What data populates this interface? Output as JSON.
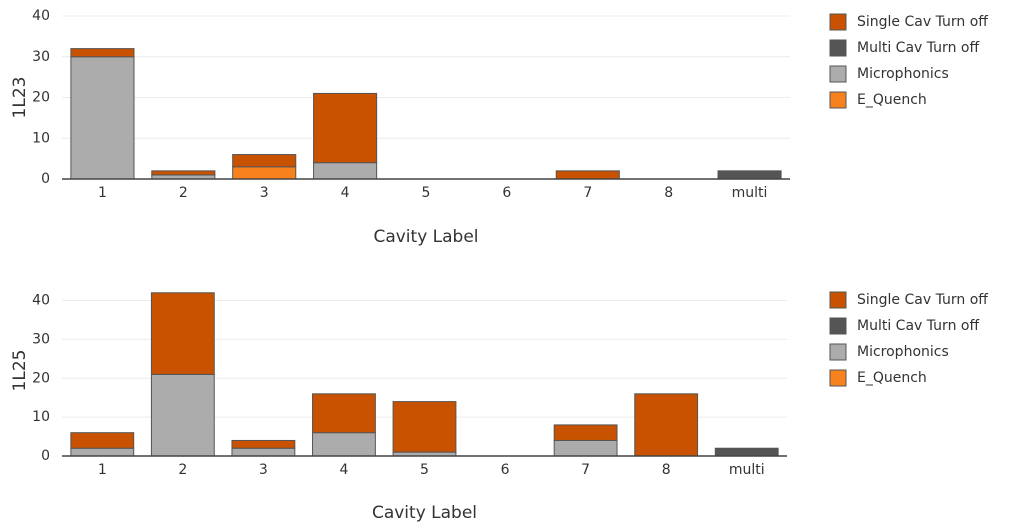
{
  "chart_data": [
    {
      "type": "bar",
      "stacked": true,
      "ylabel": "1L23",
      "xlabel": "Cavity Label",
      "categories": [
        "1",
        "2",
        "3",
        "4",
        "5",
        "6",
        "7",
        "8",
        "multi"
      ],
      "series": [
        {
          "name": "Single Cav Turn off",
          "color": "#c85200",
          "values": [
            2,
            1,
            3,
            17,
            0,
            0,
            2,
            0,
            0
          ]
        },
        {
          "name": "Multi Cav Turn off",
          "color": "#555555",
          "values": [
            0,
            0,
            0,
            0,
            0,
            0,
            0,
            0,
            2
          ]
        },
        {
          "name": "Microphonics",
          "color": "#acacac",
          "values": [
            30,
            1,
            0,
            4,
            0,
            0,
            0,
            0,
            0
          ]
        },
        {
          "name": "E_Quench",
          "color": "#f7811c",
          "values": [
            0,
            0,
            3,
            0,
            0,
            0,
            0,
            0,
            0
          ]
        }
      ],
      "ylim": [
        0,
        40
      ],
      "yticks": [
        0,
        10,
        20,
        30,
        40
      ],
      "grid": true,
      "legend": "right"
    },
    {
      "type": "bar",
      "stacked": true,
      "ylabel": "1L25",
      "xlabel": "Cavity Label",
      "categories": [
        "1",
        "2",
        "3",
        "4",
        "5",
        "6",
        "7",
        "8",
        "multi"
      ],
      "series": [
        {
          "name": "Single Cav Turn off",
          "color": "#c85200",
          "values": [
            4,
            21,
            2,
            10,
            13,
            0,
            4,
            16,
            0
          ]
        },
        {
          "name": "Multi Cav Turn off",
          "color": "#555555",
          "values": [
            0,
            0,
            0,
            0,
            0,
            0,
            0,
            0,
            2
          ]
        },
        {
          "name": "Microphonics",
          "color": "#acacac",
          "values": [
            2,
            21,
            2,
            6,
            1,
            0,
            4,
            0,
            0
          ]
        },
        {
          "name": "E_Quench",
          "color": "#f7811c",
          "values": [
            0,
            0,
            0,
            0,
            0,
            0,
            0,
            0,
            0
          ]
        }
      ],
      "ylim": [
        0,
        44
      ],
      "yticks": [
        0,
        10,
        20,
        30,
        40
      ],
      "grid": true,
      "legend": "right"
    }
  ]
}
